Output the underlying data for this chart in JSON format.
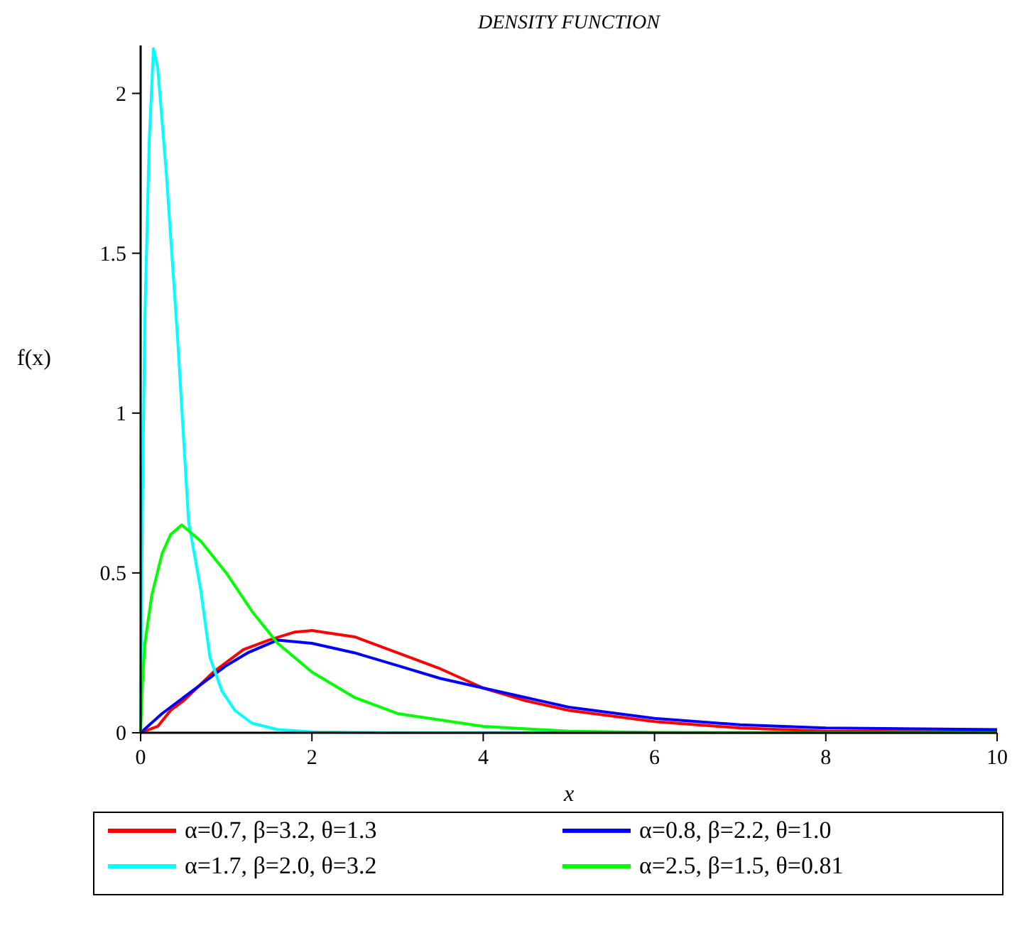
{
  "chart_data": {
    "type": "line",
    "title": "DENSITY FUNCTION",
    "xlabel": "x",
    "ylabel": "f(x)",
    "xlim": [
      0,
      10
    ],
    "ylim": [
      0,
      2.15
    ],
    "xticks": [
      0,
      2,
      4,
      6,
      8,
      10
    ],
    "yticks": [
      0,
      0.5,
      1,
      1.5,
      2
    ],
    "grid": false,
    "legend": "bottom",
    "line_style": "solid",
    "marker": "none",
    "series": [
      {
        "name": "α=0.7, β=3.2, θ=1.3",
        "color": "#ff0000",
        "x": [
          0,
          0.2,
          0.35,
          0.5,
          0.85,
          1.2,
          1.5,
          1.8,
          2,
          2.5,
          3,
          3.5,
          4,
          4.5,
          5,
          6,
          7,
          8,
          10
        ],
        "values": [
          0,
          0.02,
          0.07,
          0.1,
          0.19,
          0.26,
          0.29,
          0.315,
          0.32,
          0.3,
          0.25,
          0.2,
          0.14,
          0.1,
          0.07,
          0.035,
          0.015,
          0.005,
          0.002
        ]
      },
      {
        "name": "α=0.8, β=2.2, θ=1.0",
        "color": "#0000ff",
        "x": [
          0,
          0.25,
          0.5,
          0.75,
          1,
          1.25,
          1.6,
          2,
          2.5,
          3,
          3.5,
          4,
          4.5,
          5,
          6,
          7,
          8,
          10
        ],
        "values": [
          0,
          0.06,
          0.11,
          0.16,
          0.21,
          0.25,
          0.29,
          0.28,
          0.25,
          0.21,
          0.17,
          0.14,
          0.11,
          0.08,
          0.045,
          0.025,
          0.015,
          0.01
        ]
      },
      {
        "name": "α=1.7, β=2.0, θ=3.2",
        "color": "#00ffff",
        "x": [
          0,
          0.02,
          0.05,
          0.1,
          0.15,
          0.2,
          0.3,
          0.43,
          0.56,
          0.7,
          0.81,
          0.95,
          1.1,
          1.3,
          1.6,
          2,
          3,
          10
        ],
        "values": [
          0,
          0.7,
          1.3,
          1.85,
          2.14,
          2.08,
          1.75,
          1.24,
          0.66,
          0.45,
          0.235,
          0.13,
          0.07,
          0.03,
          0.01,
          0.003,
          0,
          0
        ]
      },
      {
        "name": "α=2.5, β=1.5, θ=0.81",
        "color": "#00ff00",
        "x": [
          0,
          0.02,
          0.05,
          0.13,
          0.25,
          0.35,
          0.48,
          0.7,
          1,
          1.3,
          1.6,
          2,
          2.5,
          3,
          4,
          5,
          6,
          10
        ],
        "values": [
          0,
          0.15,
          0.28,
          0.43,
          0.56,
          0.62,
          0.65,
          0.6,
          0.5,
          0.38,
          0.28,
          0.19,
          0.11,
          0.06,
          0.02,
          0.005,
          0.001,
          0
        ]
      }
    ]
  }
}
